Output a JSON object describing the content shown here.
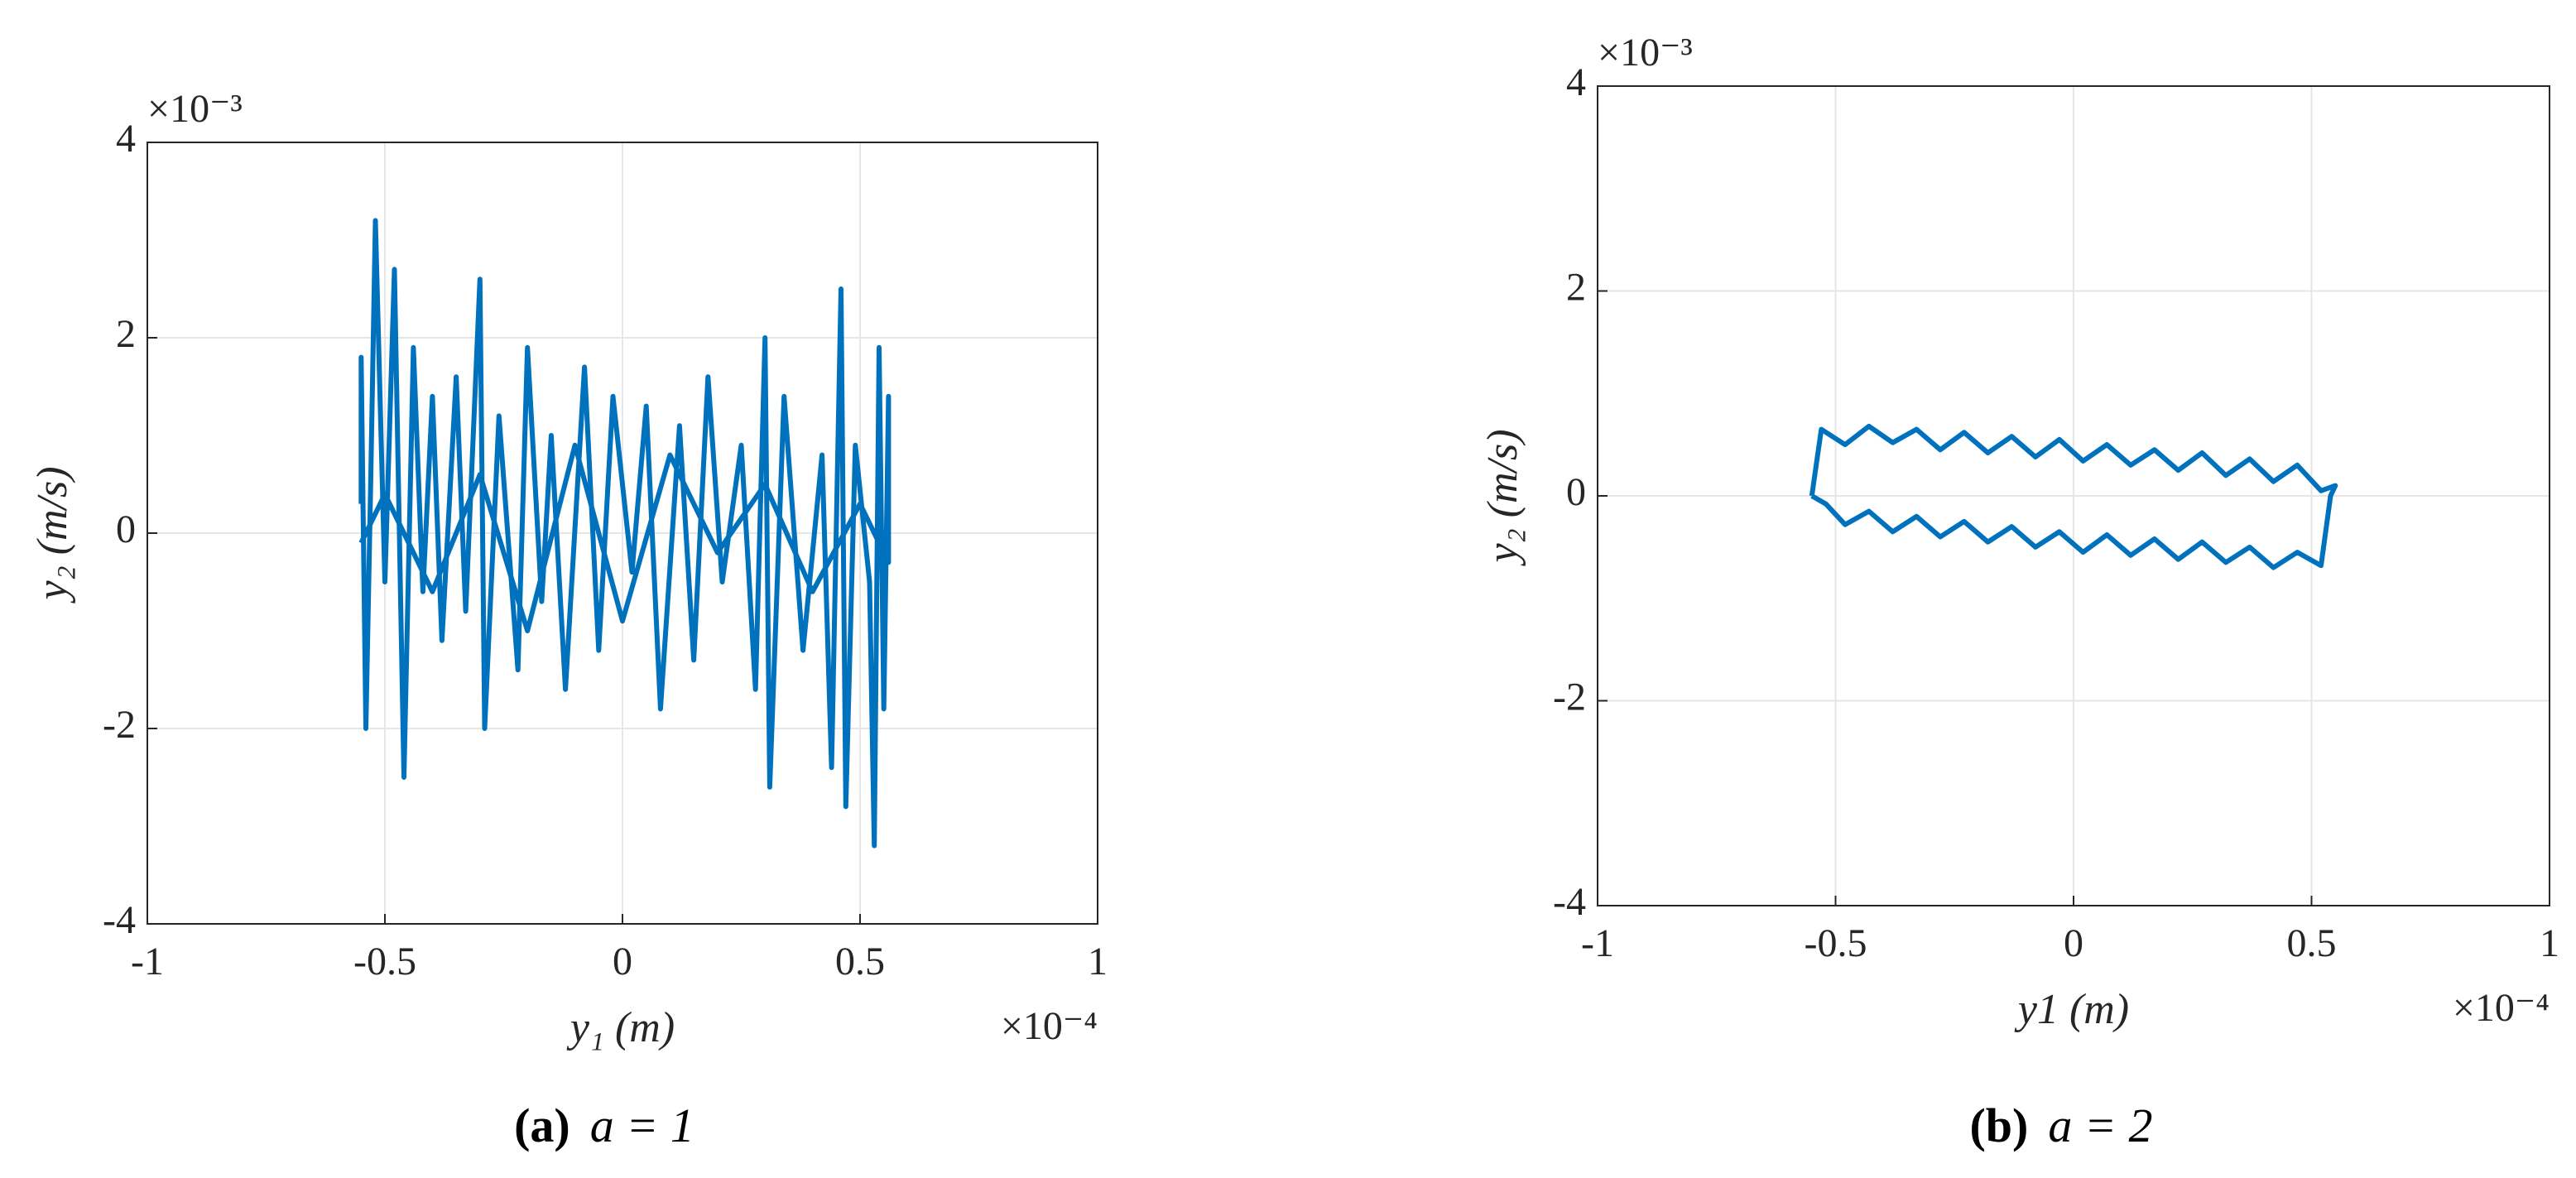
{
  "chart_data": [
    {
      "type": "line",
      "color": "#0072bd",
      "grid": true,
      "xlabel": "y₁ (m)",
      "ylabel": "y₂ (m/s)",
      "x_exponent": "×10⁻⁴",
      "y_exponent": "×10⁻³",
      "caption_label": "(a)",
      "caption": "a = 1",
      "xlim": [
        -1,
        1
      ],
      "xticks": [
        -1,
        -0.5,
        0,
        0.5,
        1
      ],
      "ylim": [
        -4,
        4
      ],
      "yticks": [
        -4,
        -2,
        0,
        2,
        4
      ],
      "x": [
        -0.55,
        -0.55,
        -0.54,
        -0.53,
        -0.52,
        -0.5,
        -0.48,
        -0.46,
        -0.44,
        -0.42,
        -0.4,
        -0.38,
        -0.35,
        -0.33,
        -0.3,
        -0.29,
        -0.26,
        -0.22,
        -0.2,
        -0.17,
        -0.15,
        -0.12,
        -0.08,
        -0.05,
        -0.02,
        0.02,
        0.05,
        0.08,
        0.12,
        0.15,
        0.18,
        0.21,
        0.25,
        0.28,
        0.3,
        0.31,
        0.34,
        0.38,
        0.42,
        0.44,
        0.46,
        0.47,
        0.49,
        0.52,
        0.53,
        0.54,
        0.55,
        0.56,
        0.56,
        0.5,
        0.4,
        0.3,
        0.2,
        0.1,
        0,
        -0.1,
        -0.2,
        -0.3,
        -0.4,
        -0.5,
        -0.55
      ],
      "values": [
        0.3,
        1.8,
        -2.0,
        0.5,
        3.2,
        -0.5,
        2.7,
        -2.5,
        1.9,
        -0.6,
        1.4,
        -1.1,
        1.6,
        -0.8,
        2.6,
        -2.0,
        1.2,
        -1.4,
        1.9,
        -0.7,
        1.0,
        -1.6,
        1.7,
        -1.2,
        1.4,
        -0.4,
        1.3,
        -1.8,
        1.1,
        -1.3,
        1.6,
        -0.5,
        0.9,
        -1.6,
        2.0,
        -2.6,
        1.4,
        -1.2,
        0.8,
        -2.4,
        2.5,
        -2.8,
        0.9,
        -0.5,
        -3.2,
        1.9,
        -1.8,
        1.4,
        -0.3,
        0.3,
        -0.6,
        0.5,
        -0.2,
        0.8,
        -0.9,
        0.9,
        -1.0,
        0.6,
        -0.6,
        0.4,
        -0.1
      ]
    },
    {
      "type": "line",
      "color": "#0072bd",
      "grid": true,
      "xlabel": "y1 (m)",
      "ylabel": "y₂ (m/s)",
      "x_exponent": "×10⁻⁴",
      "y_exponent": "×10⁻³",
      "caption_label": "(b)",
      "caption": "a = 2",
      "xlim": [
        -1,
        1
      ],
      "xticks": [
        -1,
        -0.5,
        0,
        0.5,
        1
      ],
      "ylim": [
        -4,
        4
      ],
      "yticks": [
        -4,
        -2,
        0,
        2,
        4
      ],
      "x": [
        -0.55,
        -0.53,
        -0.48,
        -0.43,
        -0.38,
        -0.33,
        -0.28,
        -0.23,
        -0.18,
        -0.13,
        -0.08,
        -0.03,
        0.02,
        0.07,
        0.12,
        0.17,
        0.22,
        0.27,
        0.32,
        0.37,
        0.42,
        0.47,
        0.52,
        0.55,
        0.54,
        0.52,
        0.47,
        0.42,
        0.37,
        0.32,
        0.27,
        0.22,
        0.17,
        0.12,
        0.07,
        0.02,
        -0.03,
        -0.08,
        -0.13,
        -0.18,
        -0.23,
        -0.28,
        -0.33,
        -0.38,
        -0.43,
        -0.48,
        -0.52,
        -0.55
      ],
      "values": [
        0,
        0.65,
        0.5,
        0.68,
        0.52,
        0.65,
        0.45,
        0.62,
        0.42,
        0.58,
        0.38,
        0.55,
        0.34,
        0.5,
        0.3,
        0.45,
        0.25,
        0.42,
        0.2,
        0.36,
        0.14,
        0.3,
        0.05,
        0.1,
        0,
        -0.68,
        -0.55,
        -0.7,
        -0.5,
        -0.65,
        -0.45,
        -0.62,
        -0.42,
        -0.58,
        -0.38,
        -0.55,
        -0.35,
        -0.5,
        -0.3,
        -0.45,
        -0.25,
        -0.4,
        -0.2,
        -0.35,
        -0.15,
        -0.28,
        -0.08,
        0
      ]
    }
  ]
}
